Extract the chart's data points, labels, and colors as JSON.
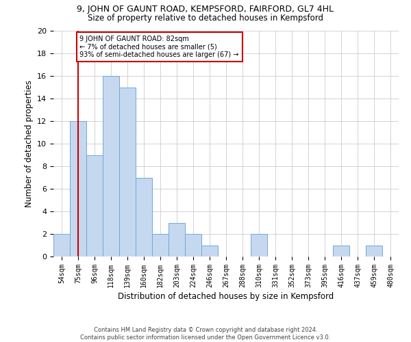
{
  "title": "9, JOHN OF GAUNT ROAD, KEMPSFORD, FAIRFORD, GL7 4HL",
  "subtitle": "Size of property relative to detached houses in Kempsford",
  "xlabel": "Distribution of detached houses by size in Kempsford",
  "ylabel": "Number of detached properties",
  "categories": [
    "54sqm",
    "75sqm",
    "96sqm",
    "118sqm",
    "139sqm",
    "160sqm",
    "182sqm",
    "203sqm",
    "224sqm",
    "246sqm",
    "267sqm",
    "288sqm",
    "310sqm",
    "331sqm",
    "352sqm",
    "373sqm",
    "395sqm",
    "416sqm",
    "437sqm",
    "459sqm",
    "480sqm"
  ],
  "values": [
    2,
    12,
    9,
    16,
    15,
    7,
    2,
    3,
    2,
    1,
    0,
    0,
    2,
    0,
    0,
    0,
    0,
    1,
    0,
    1,
    0
  ],
  "bar_color": "#c5d8f0",
  "bar_edge_color": "#6fa8d6",
  "vline_x": 1,
  "vline_color": "#cc0000",
  "annotation_text": "9 JOHN OF GAUNT ROAD: 82sqm\n← 7% of detached houses are smaller (5)\n93% of semi-detached houses are larger (67) →",
  "annotation_box_color": "#ffffff",
  "annotation_box_edge_color": "#cc0000",
  "ylim": [
    0,
    20
  ],
  "yticks": [
    0,
    2,
    4,
    6,
    8,
    10,
    12,
    14,
    16,
    18,
    20
  ],
  "footer_line1": "Contains HM Land Registry data © Crown copyright and database right 2024.",
  "footer_line2": "Contains public sector information licensed under the Open Government Licence v3.0.",
  "background_color": "#ffffff",
  "grid_color": "#cccccc",
  "title_fontsize": 9,
  "subtitle_fontsize": 8.5,
  "xlabel_fontsize": 8.5,
  "ylabel_fontsize": 8.5,
  "tick_fontsize": 7,
  "annotation_fontsize": 7,
  "footer_fontsize": 6
}
